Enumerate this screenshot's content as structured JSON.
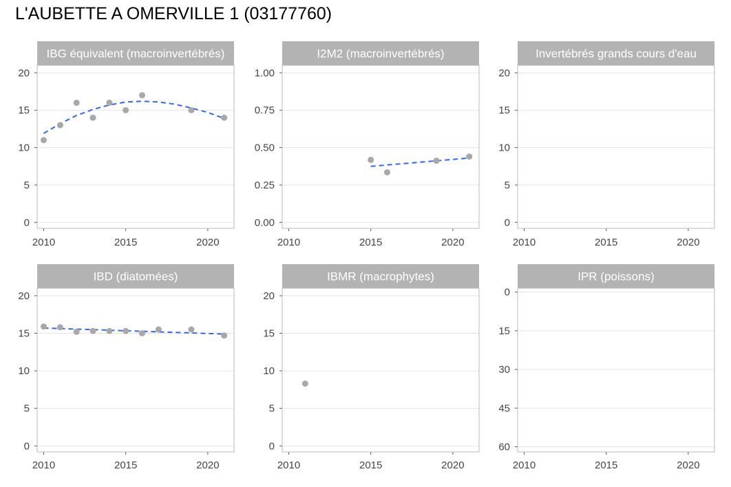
{
  "title": "L'AUBETTE A OMERVILLE 1 (03177760)",
  "colors": {
    "point": "#a8a8a8",
    "trend": "#3366ee",
    "strip": "#b3b3b3",
    "grid": "#e3e3e3",
    "panel_border": "#b8b8b8"
  },
  "chart_data": [
    {
      "type": "scatter",
      "title": "IBG équivalent (macroinvertébrés)",
      "xlim": [
        2009.6,
        2021.6
      ],
      "ylim": [
        -0.8,
        21
      ],
      "x_ticks": [
        2010,
        2015,
        2020
      ],
      "y_ticks": [
        0,
        5,
        10,
        15,
        20
      ],
      "y_tick_labels": [
        "0",
        "5",
        "10",
        "15",
        "20"
      ],
      "points": {
        "x": [
          2010,
          2011,
          2012,
          2013,
          2014,
          2015,
          2016,
          2019,
          2021
        ],
        "y": [
          11,
          13,
          16,
          14,
          16,
          15,
          17,
          15,
          14
        ]
      },
      "trend": {
        "x": [
          2010,
          2011,
          2012,
          2013,
          2014,
          2015,
          2016,
          2017,
          2018,
          2019,
          2020,
          2021
        ],
        "y": [
          11.9,
          13.2,
          14.3,
          15.1,
          15.7,
          16.1,
          16.2,
          16.1,
          15.8,
          15.3,
          14.7,
          13.9
        ]
      }
    },
    {
      "type": "scatter",
      "title": "I2M2 (macroinvertébrés)",
      "xlim": [
        2009.6,
        2021.6
      ],
      "ylim": [
        -0.04,
        1.05
      ],
      "x_ticks": [
        2010,
        2015,
        2020
      ],
      "y_ticks": [
        0,
        0.25,
        0.5,
        0.75,
        1
      ],
      "y_tick_labels": [
        "0.00",
        "0.25",
        "0.50",
        "0.75",
        "1.00"
      ],
      "points": {
        "x": [
          2015,
          2016,
          2019,
          2021
        ],
        "y": [
          0.418,
          0.335,
          0.412,
          0.44
        ]
      },
      "trend": {
        "x": [
          2015,
          2021
        ],
        "y": [
          0.375,
          0.43
        ]
      }
    },
    {
      "type": "scatter",
      "title": "Invertébrés grands cours d'eau",
      "xlim": [
        2009.6,
        2021.6
      ],
      "ylim": [
        -0.8,
        21
      ],
      "x_ticks": [
        2010,
        2015,
        2020
      ],
      "y_ticks": [
        0,
        5,
        10,
        15,
        20
      ],
      "y_tick_labels": [
        "0",
        "5",
        "10",
        "15",
        "20"
      ],
      "points": {
        "x": [],
        "y": []
      }
    },
    {
      "type": "scatter",
      "title": "IBD (diatomées)",
      "xlim": [
        2009.6,
        2021.6
      ],
      "ylim": [
        -0.8,
        21
      ],
      "x_ticks": [
        2010,
        2015,
        2020
      ],
      "y_ticks": [
        0,
        5,
        10,
        15,
        20
      ],
      "y_tick_labels": [
        "0",
        "5",
        "10",
        "15",
        "20"
      ],
      "points": {
        "x": [
          2010,
          2011,
          2012,
          2013,
          2014,
          2015,
          2016,
          2017,
          2019,
          2021
        ],
        "y": [
          15.9,
          15.8,
          15.2,
          15.3,
          15.3,
          15.3,
          15.0,
          15.5,
          15.5,
          14.7
        ]
      },
      "trend": {
        "x": [
          2010,
          2021
        ],
        "y": [
          15.7,
          14.9
        ]
      }
    },
    {
      "type": "scatter",
      "title": "IBMR (macrophytes)",
      "xlim": [
        2009.6,
        2021.6
      ],
      "ylim": [
        -0.8,
        21
      ],
      "x_ticks": [
        2010,
        2015,
        2020
      ],
      "y_ticks": [
        0,
        5,
        10,
        15,
        20
      ],
      "y_tick_labels": [
        "0",
        "5",
        "10",
        "15",
        "20"
      ],
      "points": {
        "x": [
          2011
        ],
        "y": [
          8.3
        ]
      }
    },
    {
      "type": "scatter",
      "title": "IPR (poissons)",
      "xlim": [
        2009.6,
        2021.6
      ],
      "ylim": [
        -1.5,
        62
      ],
      "y_reversed": true,
      "x_ticks": [
        2010,
        2015,
        2020
      ],
      "y_ticks": [
        0,
        15,
        30,
        45,
        60
      ],
      "y_tick_labels": [
        "0",
        "15",
        "30",
        "45",
        "60"
      ],
      "points": {
        "x": [],
        "y": []
      }
    }
  ]
}
